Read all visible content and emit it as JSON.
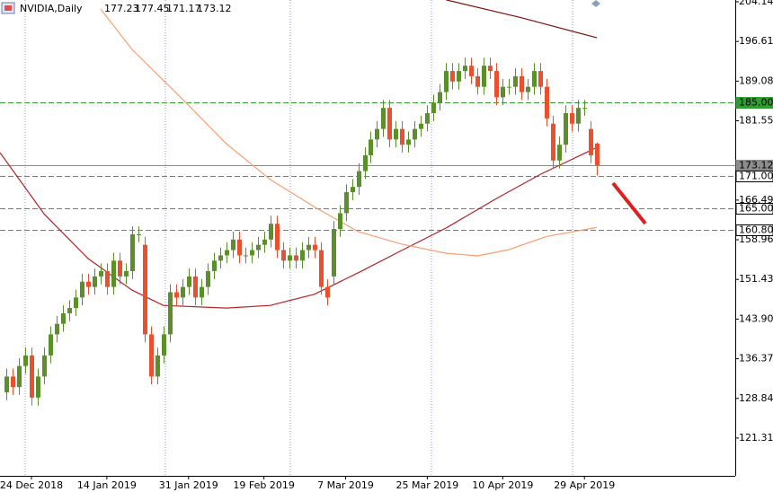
{
  "chart_data": {
    "type": "candlestick",
    "title": "NVIDIA,Daily",
    "xlim": [
      -1,
      116
    ],
    "ylim": [
      114.14,
      204.48
    ],
    "yticks": [
      204.14,
      196.61,
      189.08,
      181.55,
      166.49,
      158.96,
      151.43,
      {
        "value": 143.9,
        "label": "143.90"
      },
      136.37,
      128.84,
      121.31
    ],
    "xticks": [
      {
        "value": 4,
        "label": "24 Dec 2018"
      },
      {
        "value": 16,
        "label": "14 Jan 2019"
      },
      {
        "value": 29,
        "label": "31 Jan 2019"
      },
      {
        "value": 41,
        "label": "19 Feb 2019"
      },
      {
        "value": 54,
        "label": "7 Mar 2019"
      },
      {
        "value": 67,
        "label": "25 Mar 2019"
      },
      {
        "value": 79,
        "label": "10 Apr 2019"
      },
      {
        "value": 92,
        "label": "29 Apr 2019"
      }
    ],
    "up_color": "#5b8f2a",
    "down_color": "#e8502e",
    "candles": {
      "open": [
        130,
        133,
        131,
        135,
        137,
        129,
        133,
        137,
        141,
        143,
        145,
        146,
        148,
        151,
        150,
        152,
        153,
        150,
        155,
        152,
        153,
        160,
        158,
        141,
        133,
        137,
        141,
        149,
        148,
        150,
        152,
        148,
        150,
        153,
        155,
        156,
        157,
        159,
        156,
        156,
        157,
        158,
        159,
        162,
        157,
        155,
        156,
        155,
        157,
        158,
        157,
        150,
        152,
        161,
        164,
        168,
        169,
        172,
        175,
        178,
        180,
        184,
        178,
        180,
        177,
        178,
        180,
        181,
        183,
        185,
        187,
        191,
        189,
        191,
        192,
        190,
        188,
        192,
        191,
        186,
        188,
        188,
        190,
        187,
        188,
        191,
        188,
        181,
        174,
        177,
        183,
        181,
        184,
        180,
        177.23
      ],
      "high": [
        134.5,
        134.5,
        136.5,
        138.5,
        138.5,
        134.5,
        138.5,
        142.5,
        144.5,
        146.5,
        147.5,
        149.5,
        152.5,
        152.5,
        153.5,
        154.5,
        154.5,
        156.5,
        156.5,
        154.5,
        161.5,
        161.5,
        159.5,
        142.5,
        138.5,
        142.5,
        150.5,
        150.5,
        151.5,
        153.5,
        153.5,
        151.5,
        154.5,
        156.5,
        157.5,
        158.5,
        160.5,
        160.5,
        157.5,
        158.5,
        159.5,
        160.5,
        163.5,
        163.5,
        158.5,
        157.5,
        157.5,
        158.5,
        159.5,
        159.5,
        158.5,
        151.5,
        162.5,
        165.5,
        169.5,
        170.5,
        173.5,
        176.5,
        179.5,
        181.5,
        185.5,
        185.5,
        181.5,
        181.5,
        179.5,
        181.5,
        182.5,
        184.5,
        186.5,
        188.5,
        192.5,
        192.5,
        192.5,
        193.5,
        193.5,
        191.5,
        193.5,
        193.5,
        192.5,
        189.5,
        189.5,
        191.5,
        191.5,
        189.5,
        192.5,
        192.5,
        189.5,
        182.5,
        178.5,
        184.5,
        184.5,
        185.5,
        185.5,
        181.5,
        177.45
      ],
      "low": [
        128.5,
        129.5,
        129.5,
        133.5,
        127.5,
        127.5,
        131.5,
        135.5,
        139.5,
        141.5,
        143.5,
        144.5,
        146.5,
        148.5,
        148.5,
        150.5,
        148.5,
        148.5,
        150.5,
        150.5,
        151.5,
        158.5,
        139.5,
        131.5,
        131.5,
        135.5,
        139.5,
        146.5,
        146.5,
        148.5,
        146.5,
        146.5,
        148.5,
        151.5,
        153.5,
        154.5,
        155.5,
        154.5,
        154.5,
        154.5,
        155.5,
        156.5,
        157.5,
        155.5,
        153.5,
        153.5,
        153.5,
        153.5,
        155.5,
        155.5,
        148.5,
        146.5,
        150.5,
        159.5,
        162.5,
        166.5,
        167.5,
        170.5,
        173.5,
        176.5,
        178.5,
        176.5,
        176.5,
        175.5,
        175.5,
        176.5,
        178.5,
        179.5,
        181.5,
        183.5,
        185.5,
        187.5,
        187.5,
        189.5,
        188.5,
        186.5,
        186.5,
        189.5,
        184.5,
        184.5,
        186.5,
        186.5,
        185.5,
        185.5,
        186.5,
        186.5,
        180.5,
        172.5,
        172.5,
        175.5,
        179.5,
        179.5,
        182.5,
        173.5,
        171.17
      ],
      "close": [
        133,
        131,
        135,
        137,
        129,
        133,
        137,
        141,
        143,
        145,
        146,
        148,
        151,
        150,
        152,
        153,
        150,
        155,
        152,
        153,
        160,
        160,
        141,
        133,
        137,
        141,
        149,
        148,
        150,
        152,
        148,
        150,
        153,
        155,
        156,
        157,
        159,
        156,
        156,
        157,
        158,
        159,
        162,
        157,
        155,
        156,
        155,
        157,
        158,
        157,
        150,
        148,
        161,
        164,
        168,
        169,
        172,
        175,
        178,
        180,
        184,
        178,
        180,
        177,
        178,
        180,
        181,
        183,
        185,
        187,
        191,
        189,
        191,
        192,
        190,
        188,
        192,
        191,
        186,
        188,
        188,
        190,
        187,
        188,
        191,
        188,
        182,
        174,
        177,
        183,
        181,
        184,
        184,
        175,
        173.12
      ]
    },
    "lines": [
      {
        "color": "#b22222",
        "x": [
          -1,
          6,
          13,
          20,
          25,
          35,
          42,
          49,
          56,
          63,
          70,
          78,
          85,
          94
        ],
        "values": [
          175.5,
          163.9,
          155.4,
          149.4,
          146.5,
          146,
          146.5,
          148.6,
          152.7,
          157,
          161.2,
          166.8,
          171.4,
          176.5
        ]
      },
      {
        "color": "#f4a070",
        "x": [
          15,
          20,
          28,
          35,
          42,
          49,
          56,
          63,
          70,
          75,
          80,
          86,
          94
        ],
        "values": [
          202.8,
          195.1,
          185.7,
          177.2,
          170.4,
          165.2,
          160.5,
          158.1,
          156.4,
          155.9,
          157.1,
          159.6,
          161.3
        ]
      },
      {
        "color": "#7a1010",
        "x": [
          70,
          82,
          94
        ],
        "values": [
          204.5,
          201.1,
          197.3
        ]
      }
    ],
    "levels": [
      {
        "value": 185,
        "label": "185.00",
        "color": "#2e9e2e",
        "text_color": "#ffffff"
      },
      {
        "value": 173.12,
        "label": "173.12",
        "color": "#8c8c8c",
        "text_color": "#ffffff"
      },
      {
        "value": 171,
        "label": "171.00",
        "color": "#ffffff",
        "text_color": "#000000"
      },
      {
        "value": 165,
        "label": "165.00",
        "color": "#ffffff",
        "text_color": "#000000"
      },
      {
        "value": 160.8,
        "label": "160.80",
        "color": "#ffffff",
        "text_color": "#000000"
      }
    ]
  }
}
